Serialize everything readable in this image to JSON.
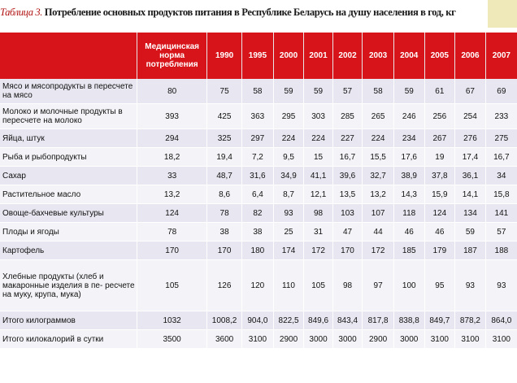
{
  "caption": {
    "prefix": "Таблица 3.",
    "title": "Потребление основных продуктов питания в Республике Беларусь на душу населения в год, кг"
  },
  "table": {
    "header": [
      "",
      "Медицинская норма потребления",
      "1990",
      "1995",
      "2000",
      "2001",
      "2002",
      "2003",
      "2004",
      "2005",
      "2006",
      "2007"
    ],
    "rows": [
      {
        "label": "Мясо и мясопродукты в пересчете на мясо",
        "values": [
          "80",
          "75",
          "58",
          "59",
          "59",
          "57",
          "58",
          "59",
          "61",
          "67",
          "69"
        ]
      },
      {
        "label": "Молоко и молочные продукты в пересчете на молоко",
        "values": [
          "393",
          "425",
          "363",
          "295",
          "303",
          "285",
          "265",
          "246",
          "256",
          "254",
          "233"
        ]
      },
      {
        "label": "Яйца, штук",
        "values": [
          "294",
          "325",
          "297",
          "224",
          "224",
          "227",
          "224",
          "234",
          "267",
          "276",
          "275"
        ]
      },
      {
        "label": "Рыба и рыбопродукты",
        "values": [
          "18,2",
          "19,4",
          "7,2",
          "9,5",
          "15",
          "16,7",
          "15,5",
          "17,6",
          "19",
          "17,4",
          "16,7"
        ]
      },
      {
        "label": "Сахар",
        "values": [
          "33",
          "48,7",
          "31,6",
          "34,9",
          "41,1",
          "39,6",
          "32,7",
          "38,9",
          "37,8",
          "36,1",
          "34"
        ]
      },
      {
        "label": "Растительное масло",
        "values": [
          "13,2",
          "8,6",
          "6,4",
          "8,7",
          "12,1",
          "13,5",
          "13,2",
          "14,3",
          "15,9",
          "14,1",
          "15,8"
        ]
      },
      {
        "label": "Овоще-бахчевые культуры",
        "values": [
          "124",
          "78",
          "82",
          "93",
          "98",
          "103",
          "107",
          "118",
          "124",
          "134",
          "141"
        ]
      },
      {
        "label": "Плоды и ягоды",
        "values": [
          "78",
          "38",
          "38",
          "25",
          "31",
          "47",
          "44",
          "46",
          "46",
          "59",
          "57"
        ]
      },
      {
        "label": "Картофель",
        "values": [
          "170",
          "170",
          "180",
          "174",
          "172",
          "170",
          "172",
          "185",
          "179",
          "187",
          "188"
        ]
      },
      {
        "label": "Хлебные продукты (хлеб и макаронные изделия в пе- ресчете на муку, крупа, мука)",
        "values": [
          "105",
          "126",
          "120",
          "110",
          "105",
          "98",
          "97",
          "100",
          "95",
          "93",
          "93"
        ]
      },
      {
        "label": "Итого килограммов",
        "values": [
          "1032",
          "1008,2",
          "904,0",
          "822,5",
          "849,6",
          "843,4",
          "817,8",
          "838,8",
          "849,7",
          "878,2",
          "864,0"
        ]
      },
      {
        "label": "Итого килокалорий в сутки",
        "values": [
          "3500",
          "3600",
          "3100",
          "2900",
          "3000",
          "3000",
          "2900",
          "3000",
          "3100",
          "3100",
          "3100"
        ]
      }
    ]
  }
}
